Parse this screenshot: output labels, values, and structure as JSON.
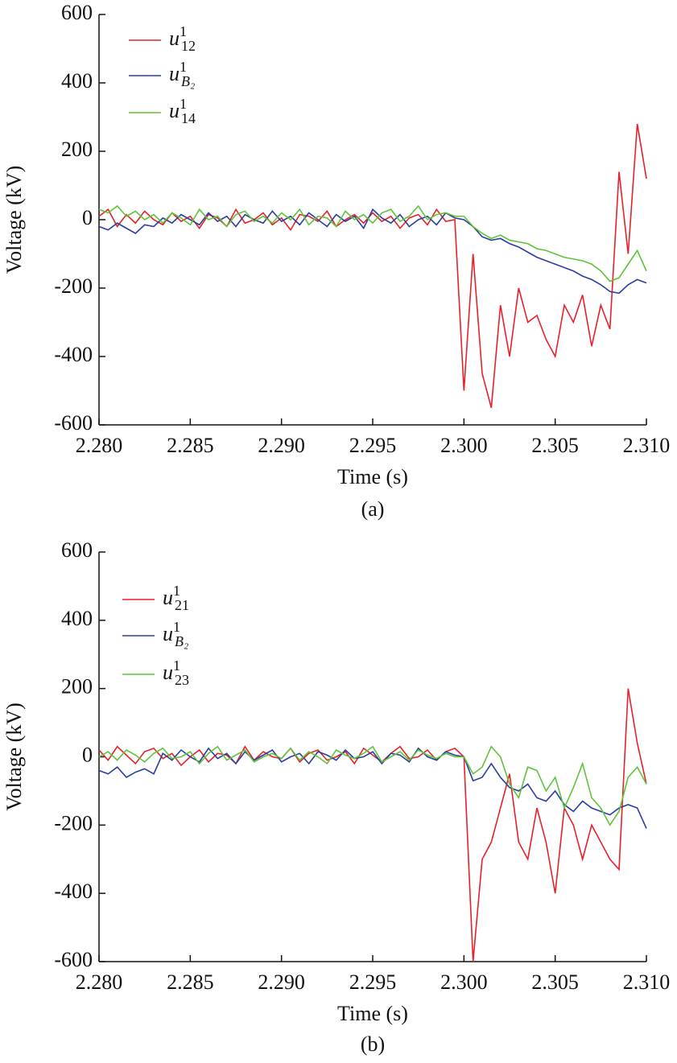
{
  "chart_data": [
    {
      "type": "line",
      "caption": "(a)",
      "x_label": "Time (s)",
      "y_label": "Voltage (kV)",
      "xlim": [
        2.28,
        2.31
      ],
      "ylim": [
        -600,
        600
      ],
      "xticks": [
        {
          "value": 2.28,
          "label": "2.280"
        },
        {
          "value": 2.285,
          "label": "2.285"
        },
        {
          "value": 2.29,
          "label": "2.290"
        },
        {
          "value": 2.295,
          "label": "2.295"
        },
        {
          "value": 2.3,
          "label": "2.300"
        },
        {
          "value": 2.305,
          "label": "2.305"
        },
        {
          "value": 2.31,
          "label": "2.310"
        }
      ],
      "yticks": [
        -600,
        -400,
        -200,
        0,
        200,
        400,
        600
      ],
      "legend": "upper left",
      "x": [
        2.28,
        2.2805,
        2.281,
        2.2815,
        2.282,
        2.2825,
        2.283,
        2.2835,
        2.284,
        2.2845,
        2.285,
        2.2855,
        2.286,
        2.2865,
        2.287,
        2.2875,
        2.288,
        2.2885,
        2.289,
        2.2895,
        2.29,
        2.2905,
        2.291,
        2.2915,
        2.292,
        2.2925,
        2.293,
        2.2935,
        2.294,
        2.2945,
        2.295,
        2.2955,
        2.296,
        2.2965,
        2.297,
        2.2975,
        2.298,
        2.2985,
        2.299,
        2.2995,
        2.3,
        2.3005,
        2.301,
        2.3015,
        2.302,
        2.3025,
        2.303,
        2.3035,
        2.304,
        2.3045,
        2.305,
        2.3055,
        2.306,
        2.3065,
        2.307,
        2.3075,
        2.308,
        2.3085,
        2.309,
        2.3095,
        2.31
      ],
      "series": [
        {
          "name": "u",
          "superscript": "1",
          "subscript": "12",
          "color": "#e8202a",
          "values": [
            10,
            30,
            -20,
            15,
            -10,
            25,
            0,
            -15,
            20,
            -5,
            10,
            -25,
            15,
            5,
            -20,
            30,
            -10,
            0,
            20,
            -15,
            5,
            -30,
            15,
            10,
            -5,
            25,
            -20,
            0,
            15,
            -10,
            20,
            -5,
            10,
            -25,
            5,
            15,
            -15,
            30,
            -5,
            0,
            -500,
            -100,
            -450,
            -550,
            -250,
            -400,
            -200,
            -300,
            -280,
            -350,
            -400,
            -250,
            -300,
            -220,
            -370,
            -250,
            -320,
            140,
            -100,
            280,
            120
          ]
        },
        {
          "name": "u",
          "superscript": "1",
          "subscript": "B₂",
          "color": "#2a3e9e",
          "values": [
            -20,
            -30,
            -10,
            -25,
            -40,
            -15,
            -20,
            5,
            -10,
            15,
            0,
            -15,
            20,
            -5,
            10,
            -20,
            15,
            0,
            -10,
            25,
            -5,
            10,
            -15,
            20,
            0,
            -20,
            15,
            -5,
            10,
            -25,
            30,
            5,
            -10,
            15,
            -20,
            0,
            10,
            -15,
            20,
            5,
            0,
            -20,
            -50,
            -60,
            -55,
            -70,
            -80,
            -95,
            -110,
            -120,
            -130,
            -140,
            -150,
            -165,
            -175,
            -190,
            -210,
            -215,
            -190,
            -175,
            -185
          ]
        },
        {
          "name": "u",
          "superscript": "1",
          "subscript": "14",
          "color": "#5ec43a",
          "values": [
            30,
            20,
            40,
            10,
            25,
            0,
            15,
            -10,
            20,
            5,
            -15,
            30,
            0,
            10,
            -20,
            15,
            25,
            -5,
            10,
            -10,
            20,
            0,
            30,
            -15,
            10,
            5,
            -20,
            25,
            0,
            15,
            -10,
            20,
            30,
            -5,
            10,
            40,
            0,
            15,
            20,
            10,
            10,
            -20,
            -40,
            -55,
            -45,
            -60,
            -65,
            -70,
            -85,
            -90,
            -100,
            -110,
            -115,
            -120,
            -130,
            -150,
            -180,
            -170,
            -130,
            -90,
            -150
          ]
        }
      ]
    },
    {
      "type": "line",
      "caption": "(b)",
      "x_label": "Time (s)",
      "y_label": "Voltage (kV)",
      "xlim": [
        2.28,
        2.31
      ],
      "ylim": [
        -600,
        600
      ],
      "xticks": [
        {
          "value": 2.28,
          "label": "2.280"
        },
        {
          "value": 2.285,
          "label": "2.285"
        },
        {
          "value": 2.29,
          "label": "2.290"
        },
        {
          "value": 2.295,
          "label": "2.295"
        },
        {
          "value": 2.3,
          "label": "2.300"
        },
        {
          "value": 2.305,
          "label": "2.305"
        },
        {
          "value": 2.31,
          "label": "2.310"
        }
      ],
      "yticks": [
        -600,
        -400,
        -200,
        0,
        200,
        400,
        600
      ],
      "legend": "upper left",
      "x": [
        2.28,
        2.2805,
        2.281,
        2.2815,
        2.282,
        2.2825,
        2.283,
        2.2835,
        2.284,
        2.2845,
        2.285,
        2.2855,
        2.286,
        2.2865,
        2.287,
        2.2875,
        2.288,
        2.2885,
        2.289,
        2.2895,
        2.29,
        2.2905,
        2.291,
        2.2915,
        2.292,
        2.2925,
        2.293,
        2.2935,
        2.294,
        2.2945,
        2.295,
        2.2955,
        2.296,
        2.2965,
        2.297,
        2.2975,
        2.298,
        2.2985,
        2.299,
        2.2995,
        2.3,
        2.3005,
        2.301,
        2.3015,
        2.302,
        2.3025,
        2.303,
        2.3035,
        2.304,
        2.3045,
        2.305,
        2.3055,
        2.306,
        2.3065,
        2.307,
        2.3075,
        2.308,
        2.3085,
        2.309,
        2.3095,
        2.31
      ],
      "series": [
        {
          "name": "u",
          "superscript": "1",
          "subscript": "21",
          "color": "#e8202a",
          "values": [
            20,
            -10,
            30,
            5,
            -20,
            15,
            25,
            -5,
            10,
            -25,
            0,
            20,
            -15,
            10,
            5,
            -20,
            30,
            -10,
            15,
            0,
            -5,
            25,
            -15,
            10,
            20,
            -10,
            0,
            15,
            -20,
            25,
            5,
            -15,
            10,
            30,
            -5,
            0,
            20,
            -10,
            15,
            25,
            0,
            -600,
            -300,
            -250,
            -150,
            -50,
            -250,
            -300,
            -150,
            -250,
            -400,
            -150,
            -200,
            -300,
            -200,
            -250,
            -300,
            -330,
            200,
            40,
            -80
          ]
        },
        {
          "name": "u",
          "superscript": "1",
          "subscript": "B₂",
          "color": "#2a3e9e",
          "values": [
            -40,
            -50,
            -30,
            -60,
            -45,
            -35,
            -50,
            10,
            -10,
            20,
            0,
            -15,
            25,
            -5,
            10,
            -20,
            15,
            -10,
            5,
            20,
            -15,
            0,
            10,
            -20,
            15,
            5,
            -10,
            20,
            -5,
            0,
            15,
            -20,
            10,
            5,
            -15,
            25,
            0,
            -10,
            15,
            5,
            0,
            -70,
            -60,
            -20,
            -60,
            -90,
            -100,
            -80,
            -120,
            -130,
            -100,
            -140,
            -160,
            -130,
            -150,
            -160,
            -170,
            -150,
            -140,
            -150,
            -210
          ]
        },
        {
          "name": "u",
          "superscript": "1",
          "subscript": "23",
          "color": "#5ec43a",
          "values": [
            0,
            15,
            -10,
            20,
            5,
            -15,
            10,
            25,
            -5,
            0,
            15,
            -20,
            10,
            30,
            -10,
            5,
            20,
            -15,
            0,
            10,
            -5,
            25,
            -10,
            15,
            0,
            -20,
            20,
            5,
            -5,
            10,
            30,
            -15,
            0,
            15,
            -10,
            20,
            5,
            -5,
            10,
            0,
            0,
            -50,
            -30,
            30,
            0,
            -80,
            -120,
            -30,
            -40,
            -100,
            -60,
            -150,
            -90,
            -20,
            -120,
            -150,
            -200,
            -160,
            -60,
            -30,
            -80
          ]
        }
      ]
    }
  ]
}
